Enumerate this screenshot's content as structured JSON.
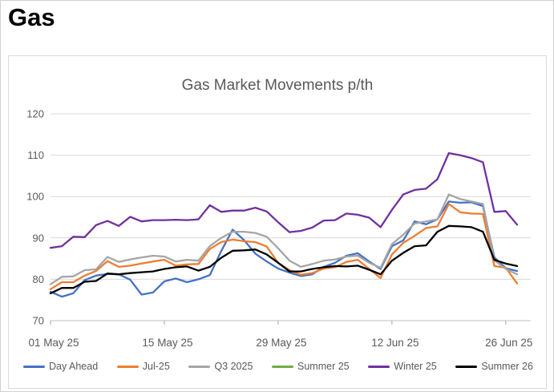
{
  "header": {
    "title": "Gas"
  },
  "chart_data": {
    "type": "line",
    "title": "Gas Market Movements p/th",
    "xlabel": "",
    "ylabel": "",
    "unit": "p/th",
    "ylim": [
      70,
      120
    ],
    "yticks": [
      70,
      80,
      90,
      100,
      110,
      120
    ],
    "grid": true,
    "legend_position": "bottom",
    "x_tick_indices": [
      0,
      10,
      20,
      30,
      40
    ],
    "x_tick_labels": [
      "01 May 25",
      "15 May 25",
      "29 May 25",
      "12 Jun 25",
      "26 Jun 25"
    ],
    "categories": [
      "01 May 25",
      "02 May 25",
      "05 May 25",
      "06 May 25",
      "07 May 25",
      "08 May 25",
      "09 May 25",
      "12 May 25",
      "13 May 25",
      "14 May 25",
      "15 May 25",
      "16 May 25",
      "19 May 25",
      "20 May 25",
      "21 May 25",
      "22 May 25",
      "23 May 25",
      "26 May 25",
      "27 May 25",
      "28 May 25",
      "29 May 25",
      "30 May 25",
      "02 Jun 25",
      "03 Jun 25",
      "04 Jun 25",
      "05 Jun 25",
      "06 Jun 25",
      "09 Jun 25",
      "10 Jun 25",
      "11 Jun 25",
      "12 Jun 25",
      "13 Jun 25",
      "16 Jun 25",
      "17 Jun 25",
      "18 Jun 25",
      "19 Jun 25",
      "20 Jun 25",
      "23 Jun 25",
      "24 Jun 25",
      "25 Jun 25",
      "26 Jun 25",
      "27 Jun 25"
    ],
    "series": [
      {
        "name": "Day Ahead",
        "color": "#4472C4",
        "values": [
          77.0,
          75.8,
          76.6,
          79.8,
          80.9,
          81.3,
          81.2,
          79.9,
          76.3,
          76.8,
          79.5,
          80.2,
          79.3,
          80.0,
          81.0,
          86.8,
          92.0,
          89.5,
          86.2,
          84.3,
          82.6,
          81.6,
          80.8,
          81.2,
          83.0,
          84.0,
          85.7,
          86.3,
          84.3,
          82.5,
          88.0,
          89.4,
          94.0,
          93.3,
          94.5,
          98.8,
          98.5,
          98.6,
          97.7,
          85.3,
          82.7,
          82.0
        ]
      },
      {
        "name": "Jul-25",
        "color": "#ED7D31",
        "values": [
          77.6,
          79.3,
          79.3,
          80.9,
          82.0,
          84.4,
          83.0,
          83.3,
          83.8,
          84.3,
          84.7,
          83.3,
          83.6,
          83.7,
          87.3,
          89.0,
          89.6,
          89.2,
          89.0,
          87.9,
          84.0,
          82.2,
          81.1,
          81.5,
          82.6,
          82.9,
          84.2,
          84.7,
          82.5,
          80.3,
          86.0,
          88.8,
          90.5,
          92.4,
          92.8,
          98.2,
          96.2,
          95.9,
          95.8,
          83.2,
          82.8,
          79.0
        ]
      },
      {
        "name": "Q3 2025",
        "color": "#A5A5A5",
        "values": [
          78.8,
          80.6,
          80.7,
          82.2,
          82.4,
          85.4,
          84.2,
          84.8,
          85.3,
          85.7,
          85.5,
          84.3,
          84.7,
          84.5,
          88.0,
          90.0,
          91.5,
          91.5,
          91.2,
          90.3,
          87.5,
          84.5,
          83.0,
          83.7,
          84.5,
          84.8,
          85.5,
          85.7,
          84.0,
          82.8,
          88.5,
          90.8,
          93.5,
          94.0,
          94.5,
          100.5,
          99.4,
          98.8,
          98.2,
          84.6,
          82.5,
          81.2
        ]
      },
      {
        "name": "Summer 25",
        "color": "#70AD47",
        "visible_in_plot": false,
        "values": []
      },
      {
        "name": "Winter 25",
        "color": "#7030A0",
        "values": [
          87.6,
          88.0,
          90.3,
          90.2,
          93.1,
          94.1,
          92.9,
          95.1,
          94.0,
          94.3,
          94.3,
          94.4,
          94.3,
          94.5,
          97.9,
          96.3,
          96.6,
          96.6,
          97.3,
          96.4,
          93.8,
          91.4,
          91.7,
          92.5,
          94.2,
          94.3,
          95.9,
          95.6,
          94.9,
          92.6,
          96.8,
          100.5,
          101.6,
          101.9,
          104.2,
          110.5,
          110.0,
          109.3,
          108.3,
          96.3,
          96.5,
          93.2
        ]
      },
      {
        "name": "Summer 26",
        "color": "#000000",
        "values": [
          76.6,
          77.9,
          77.9,
          79.4,
          79.6,
          81.4,
          81.2,
          81.5,
          81.7,
          81.9,
          82.5,
          82.9,
          83.1,
          82.1,
          83.0,
          85.2,
          86.9,
          87.0,
          87.2,
          86.0,
          84.0,
          81.9,
          81.9,
          82.5,
          82.9,
          83.2,
          83.1,
          83.3,
          82.3,
          81.2,
          84.5,
          86.4,
          88.0,
          88.2,
          91.5,
          92.9,
          92.8,
          92.6,
          91.5,
          84.7,
          83.8,
          83.2
        ]
      }
    ]
  }
}
